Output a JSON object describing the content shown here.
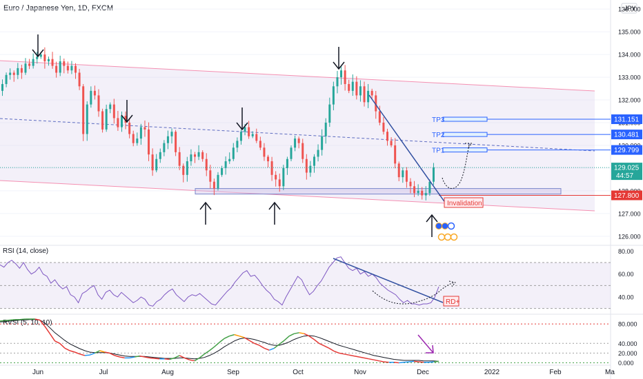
{
  "chart_data": {
    "title": "Euro / Japanese Yen, 1D, FXCM",
    "currency_badge": "JPY",
    "main": {
      "type": "candlestick",
      "ylim": [
        125.6,
        136.4
      ],
      "ticks": [
        "126.000",
        "127.000",
        "128.000",
        "129.000",
        "130.000",
        "131.000",
        "132.000",
        "133.000",
        "134.000",
        "135.000",
        "136.000"
      ],
      "last_price": "129.025",
      "countdown": "44:57",
      "price_color": "#26a69a",
      "levels": [
        {
          "name": "TP3",
          "value": 131.151,
          "label": "131.151",
          "color": "#2962ff"
        },
        {
          "name": "TP2",
          "value": 130.481,
          "label": "130.481",
          "color": "#2962ff"
        },
        {
          "name": "TP1",
          "value": 129.799,
          "label": "129.799",
          "color": "#2962ff"
        },
        {
          "name": "",
          "value": 127.8,
          "label": "127.800",
          "color": "#e53935"
        }
      ],
      "annotation": "Invalidation!",
      "closes": [
        132.7,
        133.1,
        133.2,
        133.1,
        133.4,
        133.2,
        133.6,
        133.5,
        133.8,
        133.9,
        134.0,
        133.7,
        133.8,
        133.5,
        133.2,
        133.7,
        133.5,
        133.3,
        133.5,
        133.2,
        132.6,
        130.5,
        131.8,
        132.4,
        132.2,
        131.5,
        130.7,
        131.6,
        131.8,
        131.2,
        130.8,
        131.3,
        131.0,
        130.5,
        130.1,
        130.3,
        130.8,
        130.7,
        129.6,
        128.9,
        129.4,
        129.7,
        130.1,
        130.4,
        130.6,
        129.7,
        129.1,
        128.7,
        129.3,
        129.6,
        129.5,
        129.7,
        129.4,
        128.9,
        128.4,
        128.1,
        128.7,
        129.0,
        129.3,
        129.4,
        129.9,
        130.2,
        130.6,
        130.8,
        130.4,
        130.5,
        130.2,
        129.9,
        129.5,
        129.3,
        128.7,
        128.5,
        128.2,
        129.0,
        129.4,
        129.9,
        130.3,
        130.1,
        129.4,
        128.8,
        129.1,
        129.5,
        129.8,
        130.4,
        131.0,
        131.8,
        132.6,
        133.0,
        133.3,
        132.7,
        132.4,
        132.8,
        132.2,
        132.6,
        131.9,
        132.4,
        132.2,
        131.5,
        131.0,
        130.6,
        130.2,
        130.0,
        129.2,
        128.6,
        128.9,
        128.4,
        128.2,
        127.9,
        128.0,
        127.8,
        127.9,
        128.4,
        129.025
      ],
      "rectangles": [
        {
          "from": 127.95,
          "to": 128.1
        }
      ]
    },
    "rsi": {
      "title": "RSI (14, close)",
      "ylim": [
        25,
        85
      ],
      "ticks": [
        "80.00",
        "60.00",
        "40.00"
      ],
      "levels": [
        70,
        50,
        30
      ],
      "annotation": "RD+",
      "values": [
        68,
        66,
        70,
        72,
        69,
        65,
        70,
        64,
        60,
        62,
        66,
        60,
        58,
        52,
        55,
        50,
        47,
        49,
        42,
        40,
        35,
        43,
        45,
        48,
        50,
        42,
        38,
        44,
        46,
        42,
        40,
        44,
        41,
        38,
        35,
        37,
        40,
        38,
        33,
        32,
        36,
        38,
        42,
        45,
        47,
        42,
        39,
        36,
        40,
        42,
        41,
        43,
        40,
        37,
        34,
        33,
        37,
        41,
        45,
        48,
        53,
        57,
        61,
        63,
        58,
        59,
        55,
        50,
        46,
        43,
        38,
        36,
        33,
        40,
        46,
        52,
        58,
        55,
        48,
        42,
        45,
        50,
        54,
        60,
        66,
        70,
        74,
        75,
        70,
        65,
        63,
        65,
        60,
        62,
        58,
        60,
        57,
        52,
        49,
        46,
        44,
        42,
        38,
        35,
        37,
        34,
        34,
        33,
        34,
        34,
        35,
        40,
        49
      ]
    },
    "rvsi": {
      "title": "RVSI (5, 10, 10)",
      "ylim": [
        -5,
        100
      ],
      "ticks": [
        "80.000",
        "40.000",
        "20.000",
        "0.000"
      ],
      "levels": [
        80,
        40,
        20,
        0
      ],
      "red": [
        86,
        87,
        88,
        89,
        89,
        90,
        90,
        90,
        88,
        75,
        60,
        45,
        40,
        30,
        25,
        22,
        18,
        15,
        16,
        20,
        25,
        22,
        20,
        15,
        12,
        10,
        10,
        12,
        14,
        12,
        10,
        9,
        8,
        8,
        7,
        10,
        15,
        10,
        6,
        4,
        10,
        18,
        25,
        33,
        42,
        50,
        55,
        58,
        55,
        52,
        46,
        40,
        36,
        30,
        26,
        30,
        38,
        46,
        55,
        60,
        62,
        60,
        55,
        48,
        40,
        35,
        30,
        24,
        20,
        18,
        16,
        14,
        12,
        10,
        8,
        6,
        4,
        2,
        1,
        1,
        0,
        1,
        2,
        3,
        2,
        1,
        1,
        2,
        3
      ],
      "black": [
        84,
        85,
        86,
        87,
        88,
        88,
        89,
        89,
        88,
        82,
        72,
        62,
        54,
        46,
        39,
        34,
        29,
        25,
        22,
        21,
        21,
        21,
        20,
        18,
        16,
        14,
        13,
        13,
        13,
        13,
        12,
        11,
        10,
        9,
        9,
        9,
        10,
        10,
        9,
        8,
        9,
        11,
        15,
        20,
        26,
        33,
        39,
        45,
        49,
        51,
        50,
        48,
        45,
        42,
        38,
        36,
        36,
        39,
        43,
        48,
        52,
        55,
        56,
        55,
        52,
        48,
        44,
        40,
        36,
        33,
        30,
        27,
        24,
        21,
        18,
        15,
        13,
        11,
        9,
        7,
        6,
        5,
        5,
        5,
        5,
        4,
        4,
        4,
        3
      ]
    },
    "x_ticks": [
      "Jun",
      "Jul",
      "Aug",
      "Sep",
      "Oct",
      "Nov",
      "Dec",
      "2022",
      "Feb",
      "Ma"
    ]
  }
}
